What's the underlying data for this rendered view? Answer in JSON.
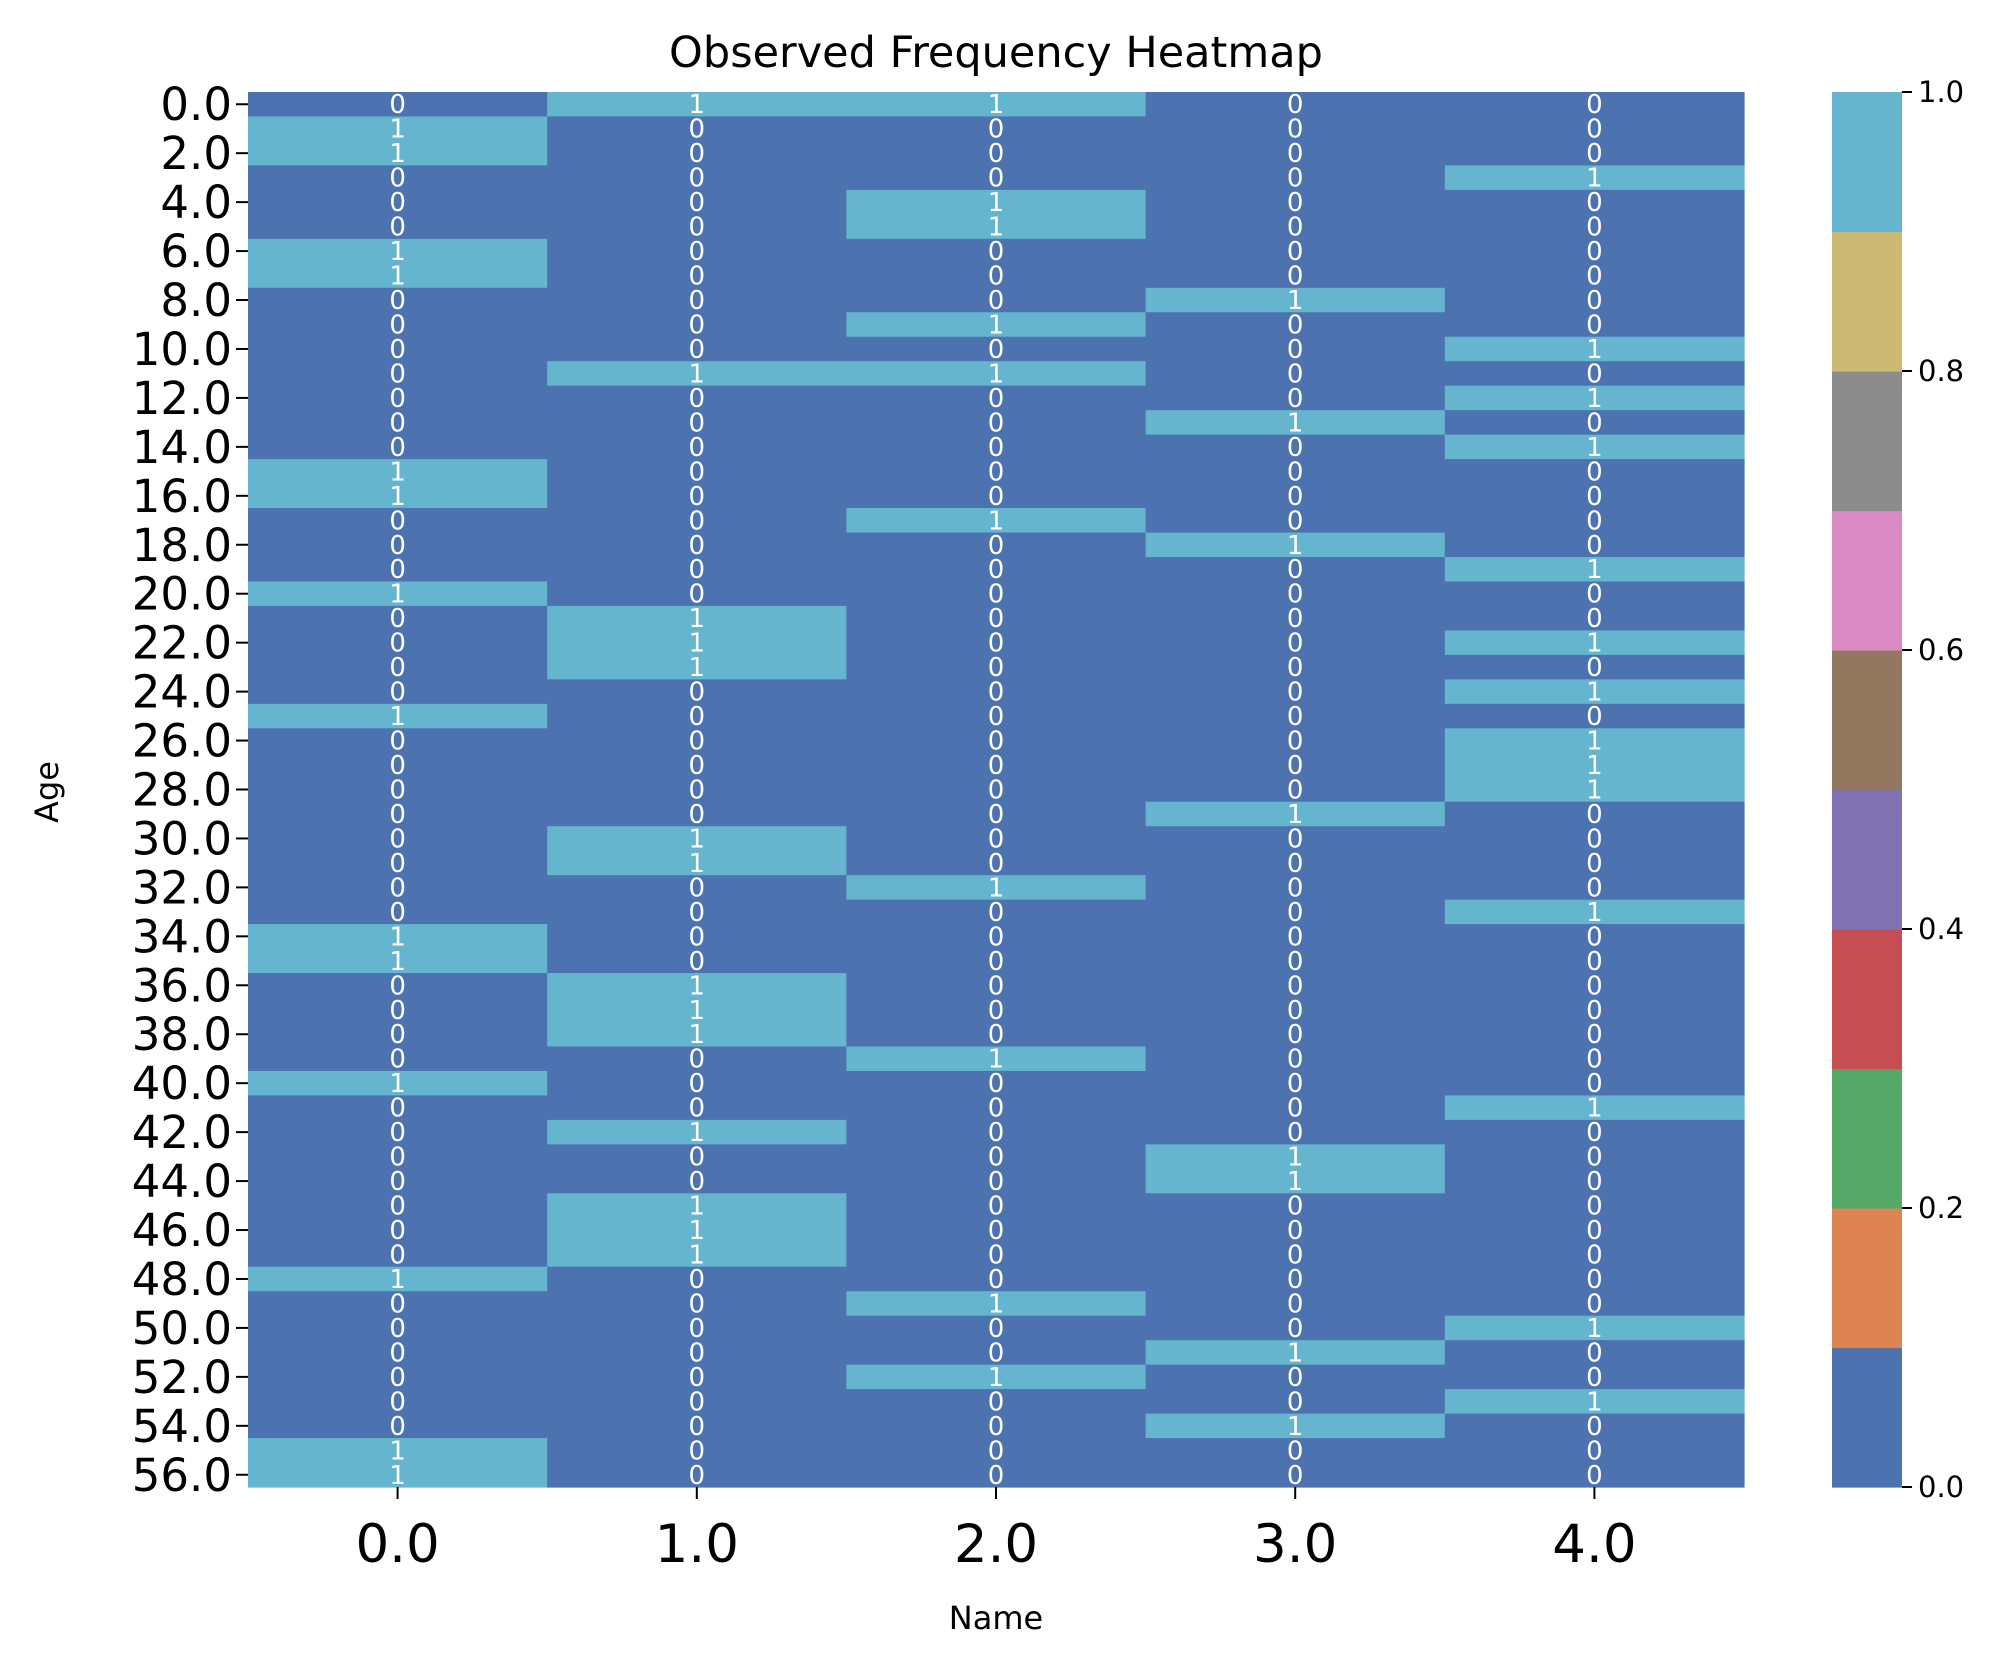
{
  "chart_data": {
    "type": "heatmap",
    "title": "Observed Frequency Heatmap",
    "xlabel": "Name",
    "ylabel": "Age",
    "x_categories": [
      "0.0",
      "1.0",
      "2.0",
      "3.0",
      "4.0"
    ],
    "y_categories": [
      "0.0",
      "1.0",
      "2.0",
      "3.0",
      "4.0",
      "5.0",
      "6.0",
      "7.0",
      "8.0",
      "9.0",
      "10.0",
      "11.0",
      "12.0",
      "13.0",
      "14.0",
      "15.0",
      "16.0",
      "17.0",
      "18.0",
      "19.0",
      "20.0",
      "21.0",
      "22.0",
      "23.0",
      "24.0",
      "25.0",
      "26.0",
      "27.0",
      "28.0",
      "29.0",
      "30.0",
      "31.0",
      "32.0",
      "33.0",
      "34.0",
      "35.0",
      "36.0",
      "37.0",
      "38.0",
      "39.0",
      "40.0",
      "41.0",
      "42.0",
      "43.0",
      "44.0",
      "45.0",
      "46.0",
      "47.0",
      "48.0",
      "49.0",
      "50.0",
      "51.0",
      "52.0",
      "53.0",
      "54.0",
      "55.0",
      "56.0"
    ],
    "y_tick_labels": [
      "0.0",
      "2.0",
      "4.0",
      "6.0",
      "8.0",
      "10.0",
      "12.0",
      "14.0",
      "16.0",
      "18.0",
      "20.0",
      "22.0",
      "24.0",
      "26.0",
      "28.0",
      "30.0",
      "32.0",
      "34.0",
      "36.0",
      "38.0",
      "40.0",
      "42.0",
      "44.0",
      "46.0",
      "48.0",
      "50.0",
      "52.0",
      "54.0",
      "56.0"
    ],
    "colorbar": {
      "range": [
        0,
        1
      ],
      "ticks": [
        "0.0",
        "0.2",
        "0.4",
        "0.6",
        "0.8",
        "1.0"
      ],
      "colors": [
        "#4c72b0",
        "#dd8452",
        "#55a868",
        "#c44e52",
        "#8172b3",
        "#937860",
        "#da8bc3",
        "#8c8c8c",
        "#ccb974",
        "#64b5cd"
      ]
    },
    "values": [
      [
        0,
        1,
        1,
        0,
        0
      ],
      [
        1,
        0,
        0,
        0,
        0
      ],
      [
        1,
        0,
        0,
        0,
        0
      ],
      [
        0,
        0,
        0,
        0,
        1
      ],
      [
        0,
        0,
        1,
        0,
        0
      ],
      [
        0,
        0,
        1,
        0,
        0
      ],
      [
        1,
        0,
        0,
        0,
        0
      ],
      [
        1,
        0,
        0,
        0,
        0
      ],
      [
        0,
        0,
        0,
        1,
        0
      ],
      [
        0,
        0,
        1,
        0,
        0
      ],
      [
        0,
        0,
        0,
        0,
        1
      ],
      [
        0,
        1,
        1,
        0,
        0
      ],
      [
        0,
        0,
        0,
        0,
        1
      ],
      [
        0,
        0,
        0,
        1,
        0
      ],
      [
        0,
        0,
        0,
        0,
        1
      ],
      [
        1,
        0,
        0,
        0,
        0
      ],
      [
        1,
        0,
        0,
        0,
        0
      ],
      [
        0,
        0,
        1,
        0,
        0
      ],
      [
        0,
        0,
        0,
        1,
        0
      ],
      [
        0,
        0,
        0,
        0,
        1
      ],
      [
        1,
        0,
        0,
        0,
        0
      ],
      [
        0,
        1,
        0,
        0,
        0
      ],
      [
        0,
        1,
        0,
        0,
        1
      ],
      [
        0,
        1,
        0,
        0,
        0
      ],
      [
        0,
        0,
        0,
        0,
        1
      ],
      [
        1,
        0,
        0,
        0,
        0
      ],
      [
        0,
        0,
        0,
        0,
        1
      ],
      [
        0,
        0,
        0,
        0,
        1
      ],
      [
        0,
        0,
        0,
        0,
        1
      ],
      [
        0,
        0,
        0,
        1,
        0
      ],
      [
        0,
        1,
        0,
        0,
        0
      ],
      [
        0,
        1,
        0,
        0,
        0
      ],
      [
        0,
        0,
        1,
        0,
        0
      ],
      [
        0,
        0,
        0,
        0,
        1
      ],
      [
        1,
        0,
        0,
        0,
        0
      ],
      [
        1,
        0,
        0,
        0,
        0
      ],
      [
        0,
        1,
        0,
        0,
        0
      ],
      [
        0,
        1,
        0,
        0,
        0
      ],
      [
        0,
        1,
        0,
        0,
        0
      ],
      [
        0,
        0,
        1,
        0,
        0
      ],
      [
        1,
        0,
        0,
        0,
        0
      ],
      [
        0,
        0,
        0,
        0,
        1
      ],
      [
        0,
        1,
        0,
        0,
        0
      ],
      [
        0,
        0,
        0,
        1,
        0
      ],
      [
        0,
        0,
        0,
        1,
        0
      ],
      [
        0,
        1,
        0,
        0,
        0
      ],
      [
        0,
        1,
        0,
        0,
        0
      ],
      [
        0,
        1,
        0,
        0,
        0
      ],
      [
        1,
        0,
        0,
        0,
        0
      ],
      [
        0,
        0,
        1,
        0,
        0
      ],
      [
        0,
        0,
        0,
        0,
        1
      ],
      [
        0,
        0,
        0,
        1,
        0
      ],
      [
        0,
        0,
        1,
        0,
        0
      ],
      [
        0,
        0,
        0,
        0,
        1
      ],
      [
        0,
        0,
        0,
        1,
        0
      ],
      [
        1,
        0,
        0,
        0,
        0
      ],
      [
        1,
        0,
        0,
        0,
        0
      ]
    ]
  }
}
